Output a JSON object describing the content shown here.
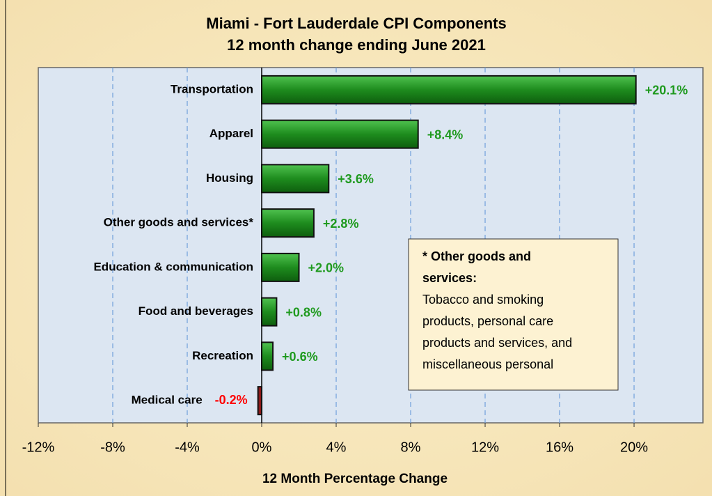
{
  "chart_data": {
    "type": "barh",
    "title": [
      "Miami - Fort Lauderdale CPI Components",
      "12 month change ending June 2021"
    ],
    "xlabel": "12 Month Percentage Change",
    "categories": [
      "Transportation",
      "Apparel",
      "Housing",
      "Other goods and services*",
      "Education &  communication",
      "Food and beverages",
      "Recreation",
      "Medical care"
    ],
    "values": [
      20.1,
      8.4,
      3.6,
      2.8,
      2.0,
      0.8,
      0.6,
      -0.2
    ],
    "value_labels": [
      "+20.1%",
      "+8.4%",
      "+3.6%",
      "+2.8%",
      "+2.0%",
      "+0.8%",
      "+0.6%",
      "-0.2%"
    ],
    "color": "#1e8c1e",
    "negative_color": "#8b1a1a",
    "label_color": "#1f9a1f",
    "negative_label_color": "#ff0000",
    "xlim": [
      -12,
      23.7
    ],
    "xticks": [
      {
        "value": -12,
        "label": "-12%"
      },
      {
        "value": -8,
        "label": "-8%"
      },
      {
        "value": -4,
        "label": "-4%"
      },
      {
        "value": 0,
        "label": "0%"
      },
      {
        "value": 4,
        "label": "4%"
      },
      {
        "value": 8,
        "label": "8%"
      },
      {
        "value": 12,
        "label": "12%"
      },
      {
        "value": 16,
        "label": "16%"
      },
      {
        "value": 20,
        "label": "20%"
      }
    ],
    "grid": true,
    "annotation": {
      "title_lines": [
        "* Other goods and",
        "services:"
      ],
      "lines": [
        "Tobacco and  smoking",
        "products, personal care",
        "products and services, and",
        "miscellaneous personal"
      ]
    }
  }
}
